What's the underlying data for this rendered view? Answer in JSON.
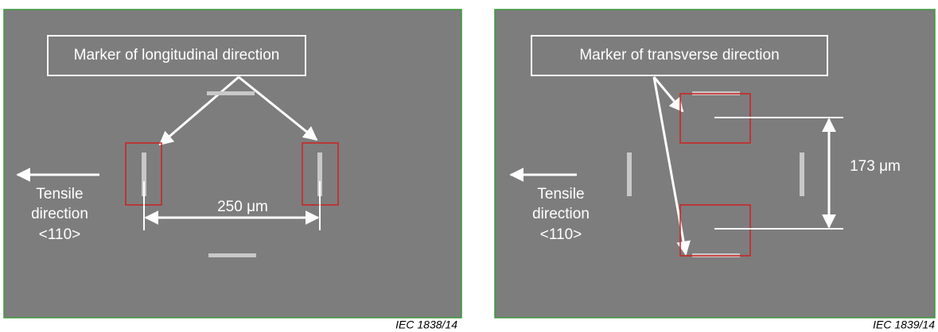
{
  "panels": [
    {
      "label": "Marker of longitudinal direction",
      "tensile": [
        "Tensile",
        "direction",
        "<110>"
      ],
      "measurement": "250 μm",
      "caption": "IEC   1838/14"
    },
    {
      "label": "Marker of transverse direction",
      "tensile": [
        "Tensile",
        "direction",
        "<110>"
      ],
      "measurement": "173 μm",
      "caption": "IEC   1839/14"
    }
  ]
}
